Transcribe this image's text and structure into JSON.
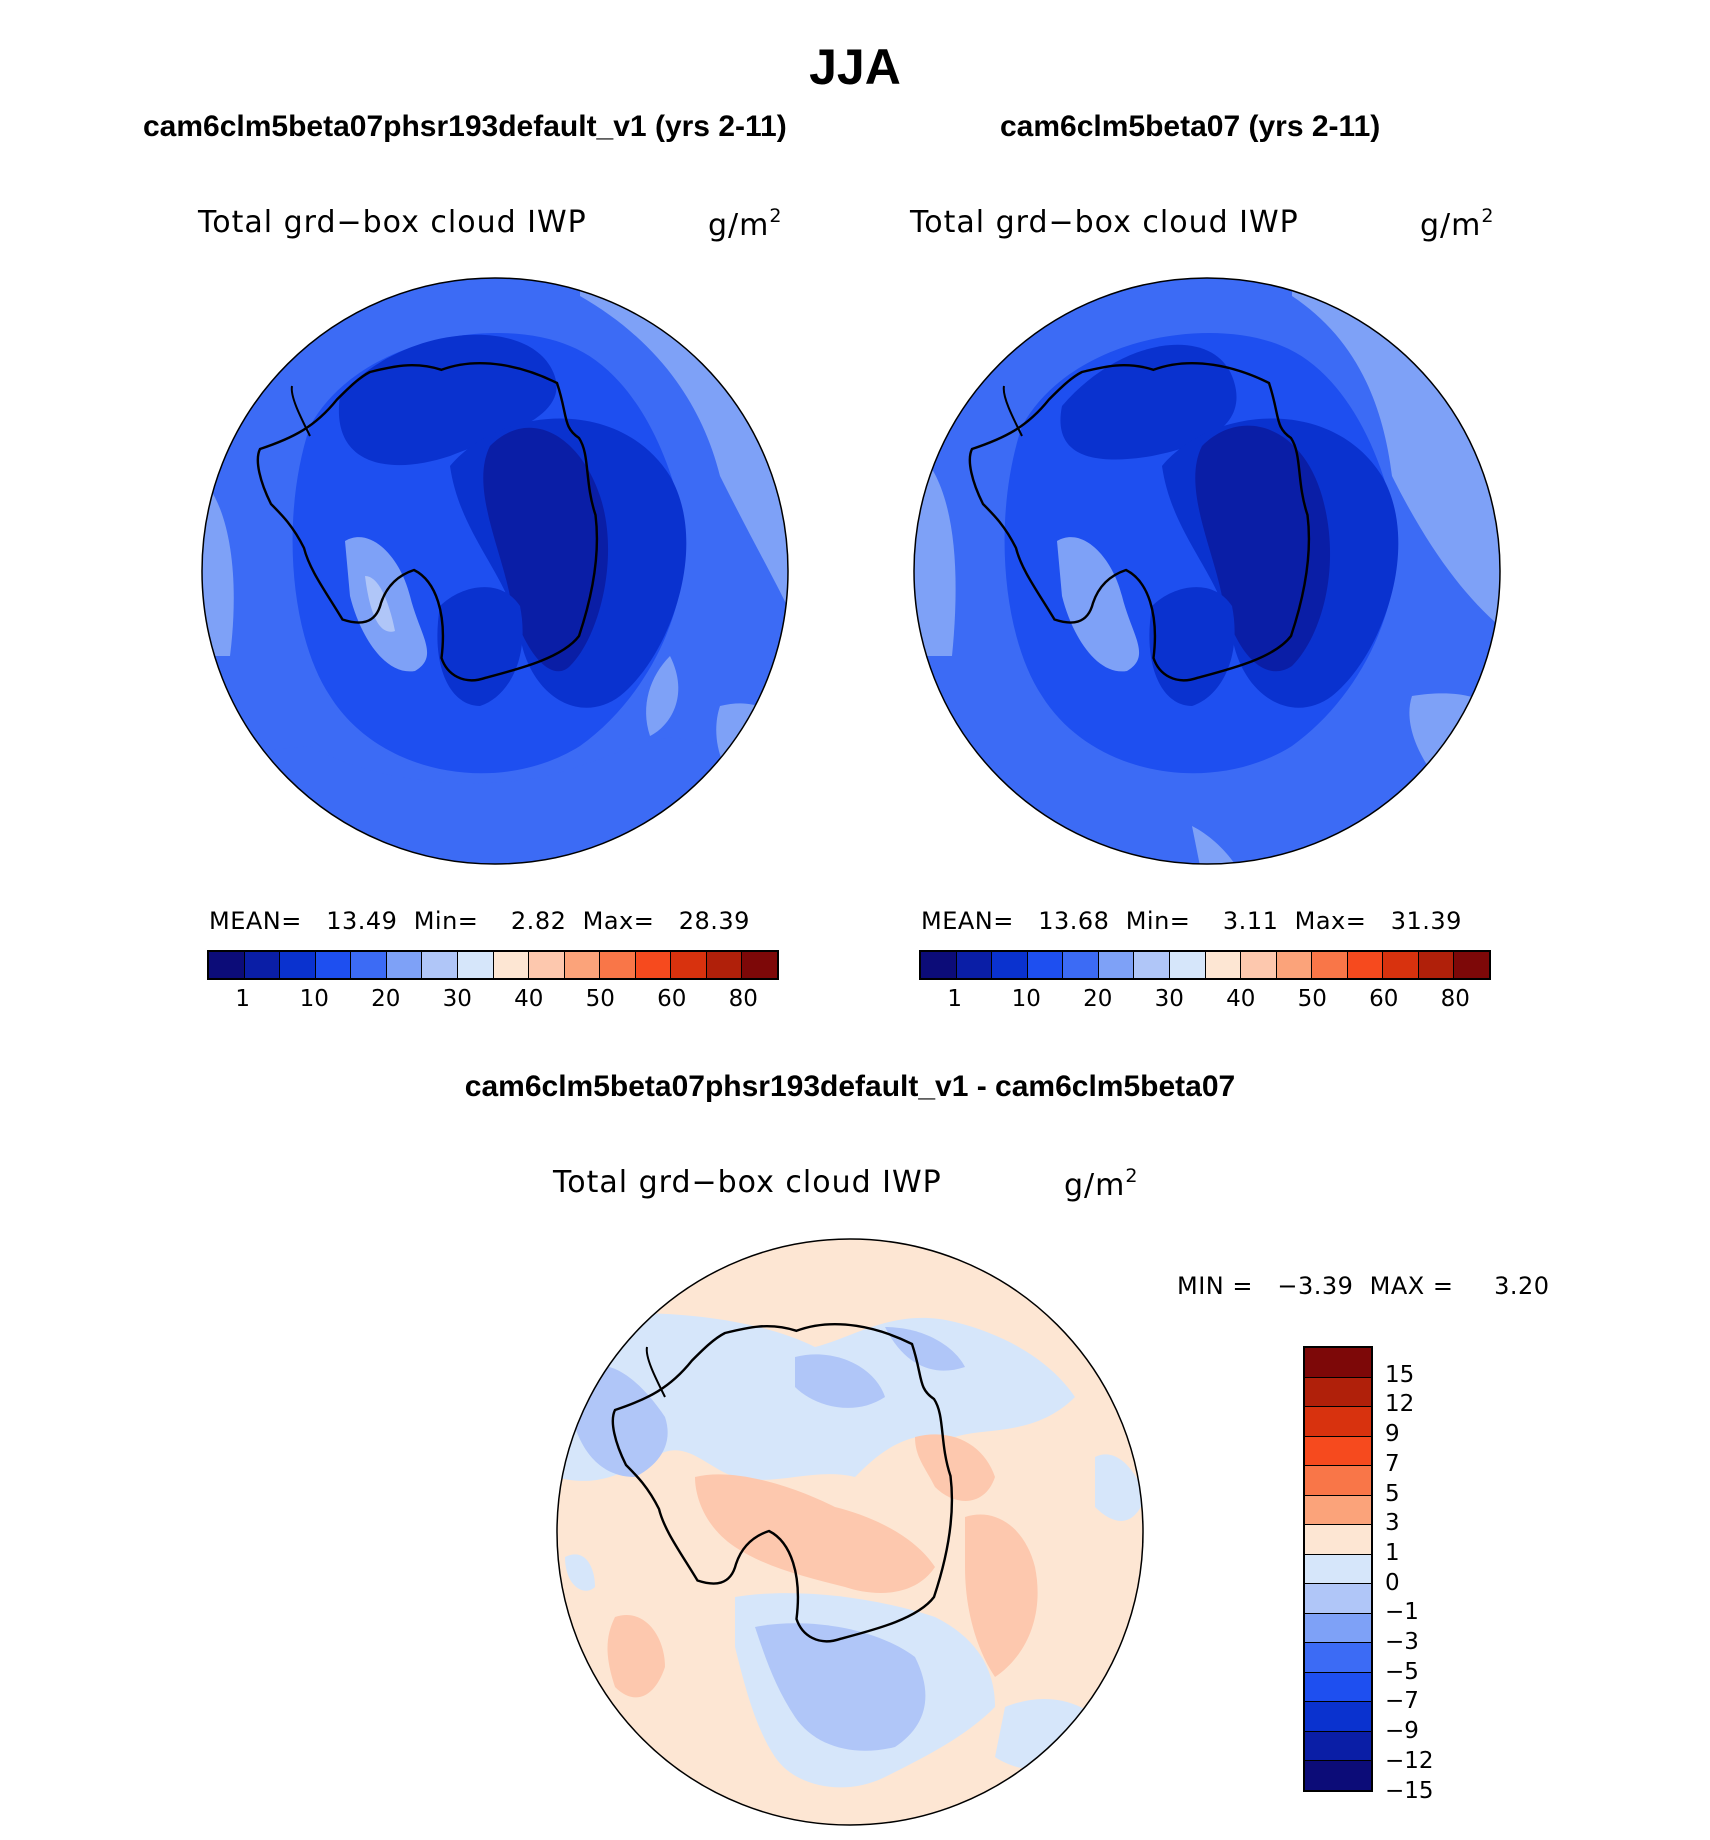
{
  "season": "JJA",
  "panels": {
    "left": {
      "case_title": "cam6clm5beta07phsr193default_v1 (yrs 2-11)",
      "var_label": "Total grd−box cloud IWP",
      "unit_base": "g/m",
      "unit_exp": "2",
      "stats": "MEAN=   13.49  Min=    2.82  Max=   28.39"
    },
    "right": {
      "case_title": "cam6clm5beta07 (yrs 2-11)",
      "var_label": "Total grd−box cloud IWP",
      "unit_base": "g/m",
      "unit_exp": "2",
      "stats": "MEAN=   13.68  Min=    3.11  Max=   31.39"
    },
    "diff": {
      "case_title": "cam6clm5beta07phsr193default_v1 - cam6clm5beta07",
      "var_label": "Total grd−box cloud IWP",
      "unit_base": "g/m",
      "unit_exp": "2",
      "stats": "MIN =   −3.39  MAX =     3.20"
    }
  },
  "colorbar_abs": {
    "colors": [
      "#0c0c78",
      "#0a1ea6",
      "#0a32cf",
      "#1e4ff0",
      "#3c6bf5",
      "#7ea1f7",
      "#b0c6f8",
      "#d6e6fa",
      "#fde6d3",
      "#fdc8ae",
      "#fba37a",
      "#f97648",
      "#f64a1e",
      "#d8320e",
      "#b0200a",
      "#7d0808"
    ],
    "tick_labels": [
      "1",
      "10",
      "20",
      "30",
      "40",
      "50",
      "60",
      "80"
    ]
  },
  "colorbar_diff": {
    "colors": [
      "#7d0808",
      "#b0200a",
      "#d8320e",
      "#f64a1e",
      "#f97648",
      "#fba37a",
      "#fde6d3",
      "#d6e6fa",
      "#b0c6f8",
      "#7ea1f7",
      "#3c6bf5",
      "#1e4ff0",
      "#0a32cf",
      "#0a1ea6",
      "#0c0c78"
    ],
    "tick_labels": [
      "15",
      "12",
      "9",
      "7",
      "5",
      "3",
      "1",
      "0",
      "−1",
      "−3",
      "−5",
      "−7",
      "−9",
      "−12",
      "−15"
    ]
  },
  "map_colors": {
    "ocean_abs": "#3c6bf5",
    "outer_abs": "#7ea1f7",
    "mid_abs": "#1e4ff0",
    "inner_abs": "#0a32cf",
    "core_abs": "#0a1ea6",
    "diff_base": "#fde6d3",
    "diff_neg1": "#d6e6fa",
    "diff_neg2": "#b0c6f8",
    "diff_pos": "#fdc8ae"
  }
}
